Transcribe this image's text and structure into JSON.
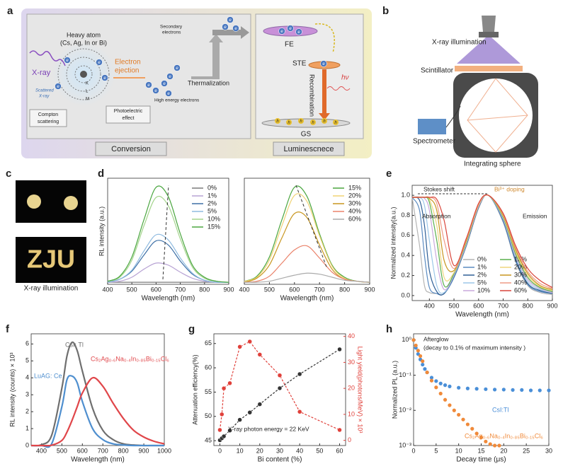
{
  "panel_labels": [
    "a",
    "b",
    "c",
    "d",
    "e",
    "f",
    "g",
    "h"
  ],
  "diagram_a": {
    "heavy_atom": [
      "Heavy atom",
      "(Cs, Ag, In or Bi)"
    ],
    "xray": "X-ray",
    "scattered": [
      "Scattered",
      "X-ray"
    ],
    "electron_ejection": [
      "Electron",
      "ejection"
    ],
    "secondary_electrons": [
      "Secondary",
      "electrons"
    ],
    "high_energy_electrons": "High energy electrons",
    "thermalization": "Thermalization",
    "compton": [
      "Compton",
      "scattering"
    ],
    "photoelectric": [
      "Photoelectric",
      "effect"
    ],
    "conversion": "Conversion",
    "luminescence": "Luminescnece",
    "shells": [
      "K",
      "L",
      "M"
    ],
    "electron": "e",
    "hole": "h",
    "fe": "FE",
    "ste": "STE",
    "recombination": "Recombination",
    "photon": "hν",
    "gs": "GS"
  },
  "diagram_b": {
    "xray_illumination": "X-ray illumination",
    "scintillator": "Scintillator",
    "spectrometer": "Spectrometer",
    "integrating_sphere": "Integrating sphere"
  },
  "panel_c": {
    "image_text": "ZJU",
    "caption": "X-ray illumination"
  },
  "chart_data": [
    {
      "type": "line",
      "xlabel": "Wavelength (nm)",
      "ylabel": "RL intensity (a.u.)",
      "x": [
        400,
        450,
        500,
        550,
        600,
        650,
        700,
        750,
        800,
        850,
        900
      ],
      "xlim": [
        400,
        900
      ],
      "xticks": [
        400,
        500,
        600,
        700,
        800,
        900
      ],
      "ylim": [
        0,
        1.05
      ],
      "legend": "upper right",
      "series": [
        {
          "name": "0%",
          "color": "#7a7a7a",
          "values": [
            0.02,
            0.02,
            0.02,
            0.02,
            0.02,
            0.02,
            0.02,
            0.02,
            0.02,
            0.02,
            0.02
          ]
        },
        {
          "name": "1%",
          "color": "#b8a3d4",
          "values": [
            0.02,
            0.03,
            0.07,
            0.15,
            0.21,
            0.19,
            0.12,
            0.06,
            0.03,
            0.02,
            0.02
          ]
        },
        {
          "name": "2%",
          "color": "#3d6fa6",
          "values": [
            0.02,
            0.05,
            0.13,
            0.29,
            0.43,
            0.39,
            0.23,
            0.1,
            0.04,
            0.02,
            0.02
          ]
        },
        {
          "name": "5%",
          "color": "#8fbbe0",
          "values": [
            0.02,
            0.05,
            0.14,
            0.33,
            0.49,
            0.44,
            0.26,
            0.11,
            0.04,
            0.02,
            0.02
          ]
        },
        {
          "name": "10%",
          "color": "#a4d48c",
          "values": [
            0.03,
            0.07,
            0.24,
            0.58,
            0.86,
            0.78,
            0.45,
            0.17,
            0.06,
            0.03,
            0.02
          ]
        },
        {
          "name": "15%",
          "color": "#4aa63f",
          "values": [
            0.03,
            0.08,
            0.27,
            0.64,
            0.96,
            0.87,
            0.5,
            0.19,
            0.07,
            0.03,
            0.02
          ]
        }
      ]
    },
    {
      "type": "line",
      "xlabel": "Wavelength (nm)",
      "x": [
        400,
        450,
        500,
        550,
        600,
        650,
        700,
        750,
        800,
        850,
        900
      ],
      "xlim": [
        400,
        900
      ],
      "xticks": [
        400,
        500,
        600,
        700,
        800,
        900
      ],
      "ylim": [
        0,
        1.05
      ],
      "legend": "upper right",
      "series": [
        {
          "name": "15%",
          "color": "#4aa63f",
          "values": [
            0.03,
            0.08,
            0.27,
            0.64,
            0.96,
            0.87,
            0.5,
            0.19,
            0.07,
            0.03,
            0.02
          ]
        },
        {
          "name": "20%",
          "color": "#f0d274",
          "values": [
            0.03,
            0.07,
            0.24,
            0.58,
            0.88,
            0.82,
            0.48,
            0.18,
            0.06,
            0.03,
            0.02
          ]
        },
        {
          "name": "30%",
          "color": "#c8961f",
          "values": [
            0.02,
            0.06,
            0.19,
            0.46,
            0.7,
            0.66,
            0.39,
            0.15,
            0.05,
            0.03,
            0.02
          ]
        },
        {
          "name": "40%",
          "color": "#ea826a",
          "values": [
            0.02,
            0.03,
            0.08,
            0.21,
            0.34,
            0.38,
            0.26,
            0.12,
            0.05,
            0.03,
            0.02
          ]
        },
        {
          "name": "60%",
          "color": "#ababab",
          "values": [
            0.02,
            0.02,
            0.03,
            0.06,
            0.09,
            0.11,
            0.1,
            0.07,
            0.04,
            0.03,
            0.02
          ]
        }
      ]
    },
    {
      "type": "line",
      "xlabel": "Wavelength (nm)",
      "ylabel": "Normalized intensity(a.u.)",
      "x": [
        330,
        360,
        380,
        400,
        430,
        460,
        500,
        550,
        600,
        640,
        700,
        750,
        800,
        850,
        900
      ],
      "xlim": [
        330,
        900
      ],
      "xticks": [
        400,
        500,
        600,
        700,
        800,
        900
      ],
      "ylim": [
        -0.05,
        1.1
      ],
      "yticks": [
        {
          "value": 0,
          "label": "0.0"
        },
        0.2,
        0.4,
        0.6,
        0.8,
        {
          "value": 1,
          "label": "1.0"
        }
      ],
      "legend": "lower right",
      "annotations": [
        "Stokes shift",
        "Bi³⁺ doping",
        "Absorption",
        "Emission"
      ],
      "series": [
        {
          "name": "0%",
          "color": "#b5b5b5",
          "values": [
            0.98,
            0.5,
            0.1,
            0.03,
            0.02,
            0.02,
            0.18,
            0.49,
            0.87,
            1.0,
            0.73,
            0.34,
            0.1,
            0.03,
            0.01
          ]
        },
        {
          "name": "1%",
          "color": "#5b8bc1",
          "values": [
            0.98,
            0.85,
            0.4,
            0.08,
            0.02,
            0.02,
            0.18,
            0.5,
            0.88,
            1.0,
            0.74,
            0.35,
            0.11,
            0.04,
            0.02
          ]
        },
        {
          "name": "2%",
          "color": "#2f5f96",
          "values": [
            0.98,
            0.95,
            0.7,
            0.25,
            0.04,
            0.02,
            0.19,
            0.5,
            0.88,
            1.0,
            0.75,
            0.36,
            0.12,
            0.05,
            0.02
          ]
        },
        {
          "name": "5%",
          "color": "#9cc7e8",
          "values": [
            0.98,
            0.98,
            0.9,
            0.55,
            0.1,
            0.03,
            0.2,
            0.51,
            0.89,
            1.0,
            0.76,
            0.38,
            0.14,
            0.06,
            0.03
          ]
        },
        {
          "name": "10%",
          "color": "#c9a9dc",
          "values": [
            0.98,
            0.98,
            0.97,
            0.85,
            0.35,
            0.06,
            0.21,
            0.52,
            0.89,
            1.0,
            0.77,
            0.4,
            0.16,
            0.07,
            0.03
          ]
        },
        {
          "name": "15%",
          "color": "#5bb04d",
          "values": [
            0.98,
            0.98,
            0.98,
            0.93,
            0.55,
            0.1,
            0.22,
            0.53,
            0.9,
            1.0,
            0.78,
            0.42,
            0.18,
            0.08,
            0.04
          ]
        },
        {
          "name": "20%",
          "color": "#efd67e",
          "values": [
            0.98,
            0.98,
            0.98,
            0.96,
            0.7,
            0.18,
            0.23,
            0.54,
            0.9,
            1.0,
            0.79,
            0.44,
            0.2,
            0.09,
            0.05
          ]
        },
        {
          "name": "30%",
          "color": "#c8961f",
          "values": [
            0.98,
            0.98,
            0.98,
            0.97,
            0.85,
            0.35,
            0.25,
            0.55,
            0.91,
            1.0,
            0.8,
            0.46,
            0.22,
            0.1,
            0.06
          ]
        },
        {
          "name": "40%",
          "color": "#ef9a86",
          "values": [
            0.98,
            0.98,
            0.98,
            0.98,
            0.92,
            0.55,
            0.27,
            0.56,
            0.91,
            1.0,
            0.81,
            0.48,
            0.24,
            0.12,
            0.07
          ]
        },
        {
          "name": "60%",
          "color": "#d9443a",
          "values": [
            0.98,
            0.98,
            0.98,
            0.98,
            0.96,
            0.75,
            0.3,
            0.57,
            0.92,
            1.0,
            0.82,
            0.5,
            0.27,
            0.15,
            0.08
          ]
        }
      ]
    },
    {
      "type": "line",
      "xlabel": "Wavelength (nm)",
      "ylabel": "RL intensity (counts) × 10³",
      "x": [
        350,
        400,
        450,
        500,
        525,
        550,
        575,
        600,
        650,
        700,
        750,
        800,
        850,
        900,
        950,
        1000
      ],
      "xlim": [
        350,
        1000
      ],
      "xticks": [
        400,
        500,
        600,
        700,
        800,
        900,
        1000
      ],
      "ylim": [
        0,
        6.6
      ],
      "yticks": [
        0,
        1,
        2,
        3,
        4,
        5,
        6
      ],
      "legend": "inline",
      "line_width": 2.2,
      "series": [
        {
          "name": "CsI: Tl",
          "color": "#6f6f6f",
          "values": [
            0,
            0.05,
            0.6,
            3.4,
            5.3,
            6.1,
            5.6,
            4.4,
            2.2,
            0.9,
            0.35,
            0.1,
            0.03,
            0,
            0,
            0
          ]
        },
        {
          "name": "LuAG: Ce",
          "color": "#4f8fcf",
          "values": [
            0,
            0,
            0.1,
            2.3,
            3.9,
            4.1,
            3.7,
            2.6,
            1.0,
            0.35,
            0.1,
            0.03,
            0,
            0,
            0,
            0
          ]
        },
        {
          "name": "Cs₂Ag₀.₆Na₀.₄In₀.₈₅Bi₀.₁₅Cl₆",
          "color": "#e0464a",
          "values": [
            0,
            0,
            0.02,
            0.3,
            0.8,
            1.5,
            2.3,
            3.1,
            4.0,
            3.5,
            2.5,
            1.6,
            0.9,
            0.5,
            0.25,
            0.1
          ]
        }
      ]
    },
    {
      "type": "line",
      "xlabel": "Bi content (%)",
      "ylabel": "Attenuation efficiency(%)",
      "y2label": "Light yield(photons/MeV) × 10³",
      "x": [
        0,
        1,
        2,
        5,
        10,
        15,
        20,
        30,
        40,
        60
      ],
      "xlim": [
        -3,
        63
      ],
      "xticks": [
        0,
        10,
        20,
        30,
        40,
        50,
        60
      ],
      "ylim": [
        44,
        67
      ],
      "yticks": [
        45,
        50,
        55,
        60,
        65
      ],
      "y2lim": [
        -2,
        41
      ],
      "y2ticks": [
        0,
        10,
        20,
        30,
        40
      ],
      "markers": true,
      "dashed": true,
      "annotations": [
        "X-ray photon energy = 22 KeV"
      ],
      "series": [
        {
          "name": "Attenuation efficiency",
          "color": "#333333",
          "values": [
            45.1,
            45.5,
            45.9,
            47.1,
            49.3,
            50.8,
            52.5,
            55.8,
            58.7,
            63.8
          ]
        },
        {
          "name": "Light yield",
          "color": "#e0403a",
          "axis": "y2",
          "values": [
            4,
            10,
            20,
            22,
            36,
            38,
            33,
            25,
            11,
            4
          ]
        }
      ]
    },
    {
      "type": "scatter",
      "xlabel": "Decay time (μs)",
      "ylabel": "Normalized PL (a.u.)",
      "log_y": true,
      "xlim": [
        0,
        30
      ],
      "xticks": [
        0,
        5,
        10,
        15,
        20,
        25,
        30
      ],
      "ylim": [
        0.001,
        1.5
      ],
      "yticks": [
        {
          "value": 1,
          "label": "10⁰"
        },
        {
          "value": 0.1,
          "label": "10⁻¹"
        },
        {
          "value": 0.01,
          "label": "10⁻²"
        },
        {
          "value": 0.001,
          "label": "10⁻³"
        }
      ],
      "legend": "inline",
      "annotations": [
        "Afterglow",
        "(decay to 0.1% of maximum intensity )"
      ],
      "series": [
        {
          "name": "CsI:Tl",
          "color": "#4a8fd8",
          "x": [
            0,
            0.5,
            1,
            1.5,
            2,
            2.5,
            3,
            4,
            5,
            6,
            7,
            8,
            10,
            12,
            14,
            16,
            18,
            20,
            22,
            24,
            26,
            28,
            30
          ],
          "values": [
            1,
            0.6,
            0.4,
            0.28,
            0.2,
            0.15,
            0.12,
            0.085,
            0.068,
            0.058,
            0.052,
            0.048,
            0.044,
            0.042,
            0.041,
            0.04,
            0.039,
            0.039,
            0.038,
            0.038,
            0.037,
            0.037,
            0.037
          ]
        },
        {
          "name": "Cs₂Ag₀.₆Na₀.₄In₀.₈₅Bi₀.₁₅Cl₆",
          "color": "#f08a3a",
          "x": [
            0,
            0.5,
            1,
            1.5,
            2,
            3,
            4,
            5,
            6,
            7,
            8,
            9,
            10,
            11,
            12,
            13,
            14,
            15,
            16,
            17,
            18,
            19
          ],
          "values": [
            1,
            0.7,
            0.5,
            0.35,
            0.25,
            0.12,
            0.07,
            0.045,
            0.03,
            0.02,
            0.014,
            0.01,
            0.0075,
            0.0055,
            0.004,
            0.003,
            0.0022,
            0.0017,
            0.0013,
            0.0011,
            0.001,
            0.001
          ]
        }
      ]
    }
  ]
}
